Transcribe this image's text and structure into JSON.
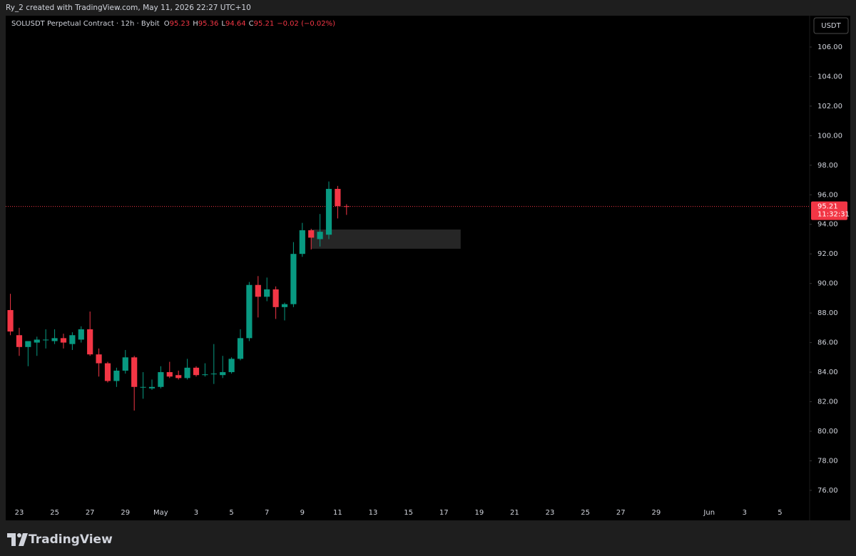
{
  "header": "Ry_2 created with TradingView.com, May 11, 2026 22:27 UTC+10",
  "brand": "TradingView",
  "chart_data": {
    "type": "candlestick",
    "title": "SOLUSDT Perpetual Contract · 12h · Bybit",
    "ohlc_letters": [
      "O",
      "H",
      "L",
      "C"
    ],
    "change_label": "−0.02 (−0.02%)",
    "currency": "USDT",
    "up_color": "#089981",
    "down_color": "#f23645",
    "x": [
      0,
      1,
      2,
      3,
      4,
      5,
      6,
      7,
      8,
      9,
      10,
      11,
      12,
      13,
      14,
      15,
      16,
      17,
      18,
      19,
      20,
      21,
      22,
      23,
      24,
      25,
      26,
      27,
      28,
      29,
      30,
      31,
      32,
      33,
      34,
      35,
      36,
      37,
      38
    ],
    "open": [
      88.2,
      86.5,
      85.7,
      86.0,
      86.2,
      86.1,
      86.3,
      85.9,
      86.2,
      86.9,
      85.2,
      84.6,
      83.4,
      84.1,
      85.0,
      83.0,
      82.9,
      83.0,
      84.0,
      83.8,
      83.6,
      84.3,
      83.8,
      83.9,
      83.8,
      84.0,
      84.9,
      86.3,
      89.9,
      89.1,
      89.6,
      88.4,
      88.6,
      92.0,
      93.6,
      93.0,
      93.3,
      96.4,
      95.23
    ],
    "high": [
      89.3,
      87.0,
      86.1,
      86.4,
      86.9,
      86.9,
      86.6,
      86.7,
      87.1,
      88.1,
      85.6,
      84.7,
      84.3,
      85.5,
      85.1,
      84.0,
      83.5,
      84.4,
      84.7,
      84.1,
      84.9,
      84.4,
      84.6,
      85.9,
      85.1,
      85.0,
      86.9,
      90.1,
      90.5,
      90.4,
      89.8,
      88.7,
      92.8,
      94.1,
      93.7,
      94.7,
      96.9,
      96.6,
      95.36
    ],
    "low": [
      86.5,
      85.1,
      84.4,
      85.1,
      85.6,
      85.9,
      85.6,
      85.5,
      86.0,
      85.1,
      83.7,
      83.3,
      83.0,
      83.9,
      81.4,
      82.2,
      82.8,
      82.9,
      83.6,
      83.5,
      83.5,
      83.7,
      83.7,
      83.2,
      83.6,
      83.9,
      84.8,
      86.1,
      87.7,
      88.8,
      87.6,
      87.5,
      88.4,
      91.8,
      92.3,
      92.5,
      93.0,
      94.4,
      94.64
    ],
    "close": [
      86.75,
      85.7,
      86.1,
      86.2,
      86.2,
      86.3,
      86.0,
      86.5,
      86.9,
      85.2,
      84.6,
      83.4,
      84.1,
      85.0,
      83.0,
      83.0,
      83.0,
      84.0,
      83.7,
      83.6,
      84.3,
      83.8,
      83.85,
      83.9,
      84.0,
      84.9,
      86.3,
      89.9,
      89.1,
      89.6,
      88.4,
      88.6,
      92.0,
      93.6,
      93.1,
      93.5,
      96.4,
      95.23,
      95.21
    ],
    "zone": {
      "x": [
        34,
        50.9
      ],
      "y": [
        92.35,
        93.65
      ],
      "color": "#262626"
    },
    "last_price": {
      "value": 95.21,
      "countdown": "11:32:31"
    },
    "xlim": [
      -0.53,
      90.35
    ],
    "ylim": [
      73.97,
      108.12
    ],
    "xticks": [
      {
        "value": 1,
        "label": "23"
      },
      {
        "value": 5,
        "label": "25"
      },
      {
        "value": 9,
        "label": "27"
      },
      {
        "value": 13,
        "label": "29"
      },
      {
        "value": 17,
        "label": "May"
      },
      {
        "value": 21,
        "label": "3"
      },
      {
        "value": 25,
        "label": "5"
      },
      {
        "value": 29,
        "label": "7"
      },
      {
        "value": 33,
        "label": "9"
      },
      {
        "value": 37,
        "label": "11"
      },
      {
        "value": 41,
        "label": "13"
      },
      {
        "value": 45,
        "label": "15"
      },
      {
        "value": 49,
        "label": "17"
      },
      {
        "value": 53,
        "label": "19"
      },
      {
        "value": 57,
        "label": "21"
      },
      {
        "value": 61,
        "label": "23"
      },
      {
        "value": 65,
        "label": "25"
      },
      {
        "value": 69,
        "label": "27"
      },
      {
        "value": 73,
        "label": "29"
      },
      {
        "value": 79,
        "label": "Jun"
      },
      {
        "value": 83,
        "label": "3"
      },
      {
        "value": 87,
        "label": "5"
      }
    ],
    "yticks": [
      {
        "value": 76,
        "label": "76.00"
      },
      {
        "value": 78,
        "label": "78.00"
      },
      {
        "value": 80,
        "label": "80.00"
      },
      {
        "value": 82,
        "label": "82.00"
      },
      {
        "value": 84,
        "label": "84.00"
      },
      {
        "value": 86,
        "label": "86.00"
      },
      {
        "value": 88,
        "label": "88.00"
      },
      {
        "value": 90,
        "label": "90.00"
      },
      {
        "value": 92,
        "label": "92.00"
      },
      {
        "value": 94,
        "label": "94.00"
      },
      {
        "value": 96,
        "label": "96.00"
      },
      {
        "value": 98,
        "label": "98.00"
      },
      {
        "value": 100,
        "label": "100.00"
      },
      {
        "value": 102,
        "label": "102.00"
      },
      {
        "value": 104,
        "label": "104.00"
      },
      {
        "value": 106,
        "label": "106.00"
      }
    ]
  }
}
